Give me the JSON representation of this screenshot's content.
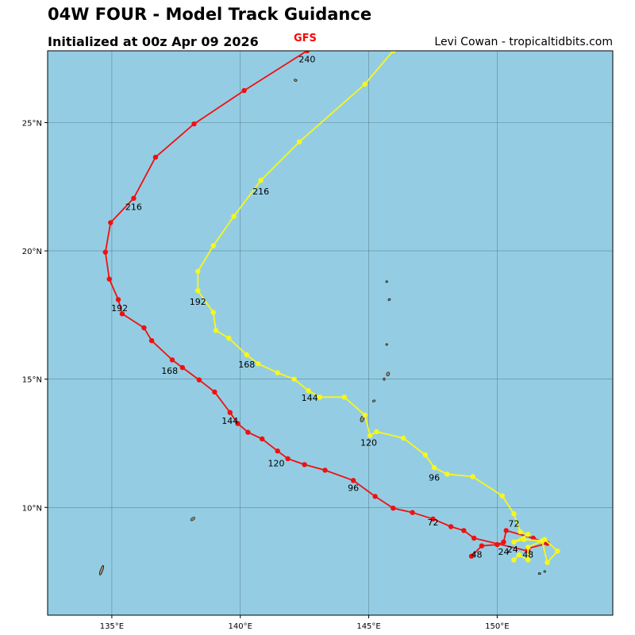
{
  "header": {
    "title": "04W FOUR - Model Track Guidance",
    "subtitle": "Initialized at 00z Apr 09 2026",
    "credit": "Levi Cowan - tropicaltidbits.com",
    "model_label": "GFS",
    "model_label_color": "#ff0000"
  },
  "map": {
    "ocean_color": "#94cde3",
    "land_color": "#9a8a72",
    "grid_color": "#4a6a78",
    "lon_range": [
      132.5,
      154.5
    ],
    "lat_range": [
      5.8,
      27.8
    ],
    "lon_ticks": [
      {
        "value": 135,
        "label": "135°E"
      },
      {
        "value": 140,
        "label": "140°E"
      },
      {
        "value": 145,
        "label": "145°E"
      },
      {
        "value": 150,
        "label": "150°E"
      }
    ],
    "lat_ticks": [
      {
        "value": 10,
        "label": "10°N"
      },
      {
        "value": 15,
        "label": "15°N"
      },
      {
        "value": 20,
        "label": "20°N"
      },
      {
        "value": 25,
        "label": "25°N"
      }
    ]
  },
  "chart_data": {
    "type": "line",
    "series": [
      {
        "name": "GFS",
        "color": "#ee1111",
        "points": [
          [
            149.0,
            8.1
          ],
          [
            149.4,
            8.5
          ],
          [
            150.0,
            8.55
          ],
          [
            150.25,
            8.65
          ],
          [
            150.35,
            9.1
          ],
          [
            151.4,
            8.8
          ],
          [
            151.95,
            8.6
          ],
          [
            151.2,
            8.4
          ],
          [
            151.2,
            8.3
          ],
          [
            149.1,
            8.8
          ],
          [
            148.7,
            9.1
          ],
          [
            148.2,
            9.25
          ],
          [
            147.5,
            9.55
          ],
          [
            146.7,
            9.8
          ],
          [
            145.95,
            9.97
          ],
          [
            145.25,
            10.43
          ],
          [
            144.4,
            11.05
          ],
          [
            143.3,
            11.45
          ],
          [
            142.5,
            11.67
          ],
          [
            141.85,
            11.9
          ],
          [
            141.45,
            12.2
          ],
          [
            140.85,
            12.67
          ],
          [
            140.3,
            12.93
          ],
          [
            139.9,
            13.27
          ],
          [
            139.6,
            13.7
          ],
          [
            139.0,
            14.5
          ],
          [
            138.4,
            14.97
          ],
          [
            137.75,
            15.45
          ],
          [
            137.35,
            15.75
          ],
          [
            136.55,
            16.5
          ],
          [
            136.25,
            17.0
          ],
          [
            135.4,
            17.55
          ],
          [
            135.25,
            18.1
          ],
          [
            134.9,
            18.9
          ],
          [
            134.75,
            19.95
          ],
          [
            134.95,
            21.1
          ],
          [
            135.85,
            22.05
          ],
          [
            136.7,
            23.65
          ],
          [
            138.2,
            24.95
          ],
          [
            140.15,
            26.25
          ],
          [
            142.6,
            27.8
          ]
        ],
        "hour_labels": [
          {
            "label": "24",
            "lon": 150.25,
            "lat": 8.15
          },
          {
            "label": "48",
            "lon": 149.2,
            "lat": 8.05
          },
          {
            "label": "72",
            "lon": 147.5,
            "lat": 9.3
          },
          {
            "label": "96",
            "lon": 144.4,
            "lat": 10.65
          },
          {
            "label": "120",
            "lon": 141.4,
            "lat": 11.6
          },
          {
            "label": "144",
            "lon": 139.6,
            "lat": 13.25
          },
          {
            "label": "168",
            "lon": 137.25,
            "lat": 15.2
          },
          {
            "label": "192",
            "lon": 135.3,
            "lat": 17.65
          },
          {
            "label": "216",
            "lon": 135.85,
            "lat": 21.6
          },
          {
            "label": "240",
            "lon": 142.6,
            "lat": 27.35
          }
        ]
      },
      {
        "name": "",
        "color": "#f7f71c",
        "points": [
          [
            150.65,
            7.95
          ],
          [
            150.85,
            8.15
          ],
          [
            151.2,
            7.95
          ],
          [
            151.2,
            8.45
          ],
          [
            151.85,
            8.75
          ],
          [
            152.35,
            8.3
          ],
          [
            151.95,
            7.85
          ],
          [
            151.75,
            8.7
          ],
          [
            151.05,
            8.75
          ],
          [
            150.65,
            8.65
          ],
          [
            151.2,
            8.95
          ],
          [
            150.9,
            9.05
          ],
          [
            150.65,
            9.75
          ],
          [
            150.2,
            10.45
          ],
          [
            149.05,
            11.2
          ],
          [
            148.05,
            11.3
          ],
          [
            147.55,
            11.55
          ],
          [
            147.2,
            12.05
          ],
          [
            146.35,
            12.7
          ],
          [
            145.3,
            12.95
          ],
          [
            145.05,
            12.8
          ],
          [
            144.85,
            13.6
          ],
          [
            144.05,
            14.3
          ],
          [
            143.1,
            14.3
          ],
          [
            142.65,
            14.55
          ],
          [
            142.1,
            15.0
          ],
          [
            141.45,
            15.25
          ],
          [
            140.7,
            15.6
          ],
          [
            140.25,
            15.95
          ],
          [
            139.55,
            16.6
          ],
          [
            139.05,
            16.9
          ],
          [
            138.95,
            17.6
          ],
          [
            138.35,
            18.45
          ],
          [
            138.35,
            19.2
          ],
          [
            138.95,
            20.2
          ],
          [
            139.75,
            21.35
          ],
          [
            140.8,
            22.75
          ],
          [
            142.3,
            24.25
          ],
          [
            144.85,
            26.5
          ],
          [
            145.95,
            27.8
          ]
        ],
        "hour_labels": [
          {
            "label": "24",
            "lon": 150.6,
            "lat": 8.25
          },
          {
            "label": "48",
            "lon": 151.2,
            "lat": 8.05
          },
          {
            "label": "72",
            "lon": 150.65,
            "lat": 9.25
          },
          {
            "label": "96",
            "lon": 147.55,
            "lat": 11.05
          },
          {
            "label": "120",
            "lon": 145.0,
            "lat": 12.4
          },
          {
            "label": "144",
            "lon": 142.7,
            "lat": 14.15
          },
          {
            "label": "168",
            "lon": 140.25,
            "lat": 15.45
          },
          {
            "label": "192",
            "lon": 138.35,
            "lat": 17.9
          },
          {
            "label": "216",
            "lon": 140.8,
            "lat": 22.2
          }
        ]
      }
    ],
    "islands": [
      {
        "lon": 134.6,
        "lat": 7.55,
        "rx": 0.05,
        "ry": 0.2,
        "rot": 20
      },
      {
        "lon": 138.15,
        "lat": 9.55,
        "rx": 0.1,
        "ry": 0.05,
        "rot": -35
      },
      {
        "lon": 142.15,
        "lat": 26.65,
        "rx": 0.06,
        "ry": 0.04,
        "rot": 20
      },
      {
        "lon": 145.7,
        "lat": 18.8,
        "rx": 0.04,
        "ry": 0.03,
        "rot": 0
      },
      {
        "lon": 145.8,
        "lat": 18.1,
        "rx": 0.05,
        "ry": 0.03,
        "rot": -30
      },
      {
        "lon": 145.7,
        "lat": 16.35,
        "rx": 0.04,
        "ry": 0.02,
        "rot": 0
      },
      {
        "lon": 145.75,
        "lat": 15.2,
        "rx": 0.06,
        "ry": 0.08,
        "rot": 30
      },
      {
        "lon": 145.6,
        "lat": 15.0,
        "rx": 0.03,
        "ry": 0.05,
        "rot": 0
      },
      {
        "lon": 145.2,
        "lat": 14.15,
        "rx": 0.06,
        "ry": 0.03,
        "rot": -20
      },
      {
        "lon": 144.75,
        "lat": 13.45,
        "rx": 0.07,
        "ry": 0.12,
        "rot": 20
      },
      {
        "lon": 151.65,
        "lat": 7.42,
        "rx": 0.05,
        "ry": 0.02,
        "rot": 0
      },
      {
        "lon": 151.85,
        "lat": 7.5,
        "rx": 0.04,
        "ry": 0.02,
        "rot": 0
      }
    ]
  }
}
